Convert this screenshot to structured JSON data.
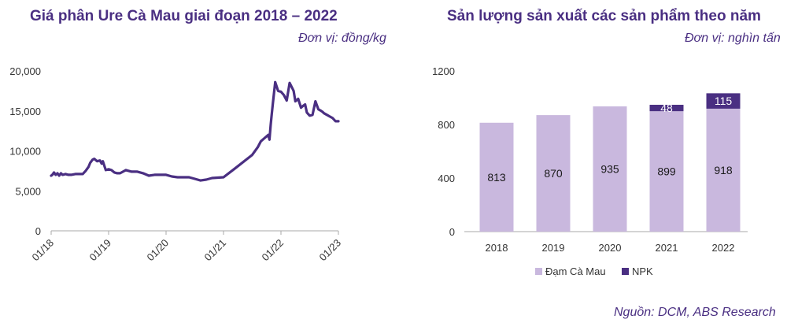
{
  "chart_data": [
    {
      "type": "line",
      "title": "Giá phân Ure Cà Mau giai đoạn 2018 – 2022",
      "unit": "Đơn vị: đồng/kg",
      "ylim": [
        0,
        20000
      ],
      "yticks": [
        "0",
        "5,000",
        "10,000",
        "15,000",
        "20,000"
      ],
      "xticks": [
        "01/18",
        "01/19",
        "01/20",
        "01/21",
        "01/22",
        "01/23"
      ],
      "xlim": [
        2018.0,
        2023.0
      ],
      "grid": false,
      "color": "#4a2f82",
      "x": [
        2018.0,
        2018.02,
        2018.05,
        2018.08,
        2018.11,
        2018.14,
        2018.17,
        2018.2,
        2018.25,
        2018.3,
        2018.35,
        2018.42,
        2018.5,
        2018.55,
        2018.6,
        2018.65,
        2018.68,
        2018.72,
        2018.75,
        2018.8,
        2018.85,
        2018.88,
        2018.9,
        2018.95,
        2019.0,
        2019.05,
        2019.1,
        2019.15,
        2019.2,
        2019.25,
        2019.3,
        2019.35,
        2019.4,
        2019.5,
        2019.6,
        2019.7,
        2019.8,
        2019.9,
        2020.0,
        2020.1,
        2020.2,
        2020.3,
        2020.4,
        2020.5,
        2020.6,
        2020.7,
        2020.8,
        2021.0,
        2021.2,
        2021.5,
        2021.6,
        2021.65,
        2021.78,
        2021.8,
        2021.82,
        2021.84,
        2021.86,
        2021.9,
        2021.95,
        2022.0,
        2022.05,
        2022.1,
        2022.15,
        2022.2,
        2022.22,
        2022.25,
        2022.3,
        2022.35,
        2022.38,
        2022.42,
        2022.45,
        2022.5,
        2022.55,
        2022.6,
        2022.65,
        2022.7,
        2022.72,
        2022.75,
        2022.8,
        2022.85,
        2022.9,
        2022.95,
        2023.0
      ],
      "y": [
        6900,
        7000,
        7300,
        7000,
        7200,
        6900,
        7200,
        7000,
        7100,
        7000,
        7000,
        7100,
        7100,
        7100,
        7500,
        8000,
        8500,
        8900,
        9000,
        8700,
        8800,
        8400,
        8700,
        7600,
        7700,
        7600,
        7300,
        7200,
        7200,
        7400,
        7600,
        7500,
        7400,
        7400,
        7200,
        6900,
        7000,
        7000,
        7000,
        6800,
        6700,
        6700,
        6700,
        6500,
        6300,
        6400,
        6600,
        6700,
        7800,
        9500,
        10500,
        11200,
        12000,
        11400,
        13200,
        14600,
        16000,
        18600,
        17500,
        17400,
        17000,
        16300,
        18500,
        17800,
        17500,
        16200,
        16500,
        15400,
        15600,
        15800,
        14800,
        14400,
        14500,
        16200,
        15200,
        15000,
        14900,
        14700,
        14500,
        14300,
        14100,
        13700,
        13700
      ]
    },
    {
      "type": "bar",
      "title": "Sản lượng sản xuất các sản phẩm theo năm",
      "unit": "Đơn vị: nghìn tấn",
      "ylim": [
        0,
        1200
      ],
      "yticks": [
        "0",
        "400",
        "800",
        "1200"
      ],
      "categories": [
        "2018",
        "2019",
        "2020",
        "2021",
        "2022"
      ],
      "series": [
        {
          "name": "Đạm Cà Mau",
          "values": [
            813,
            870,
            935,
            899,
            918
          ],
          "labels": [
            "813",
            "870",
            "935",
            "899",
            "918"
          ],
          "color": "#c9b8de"
        },
        {
          "name": "NPK",
          "values": [
            0,
            0,
            0,
            48,
            115
          ],
          "labels": [
            "",
            "",
            "",
            "48",
            "115"
          ],
          "color": "#4a2f82"
        }
      ],
      "legend": "bottom-center",
      "grid": false
    }
  ],
  "source": "Nguồn: DCM, ABS Research"
}
